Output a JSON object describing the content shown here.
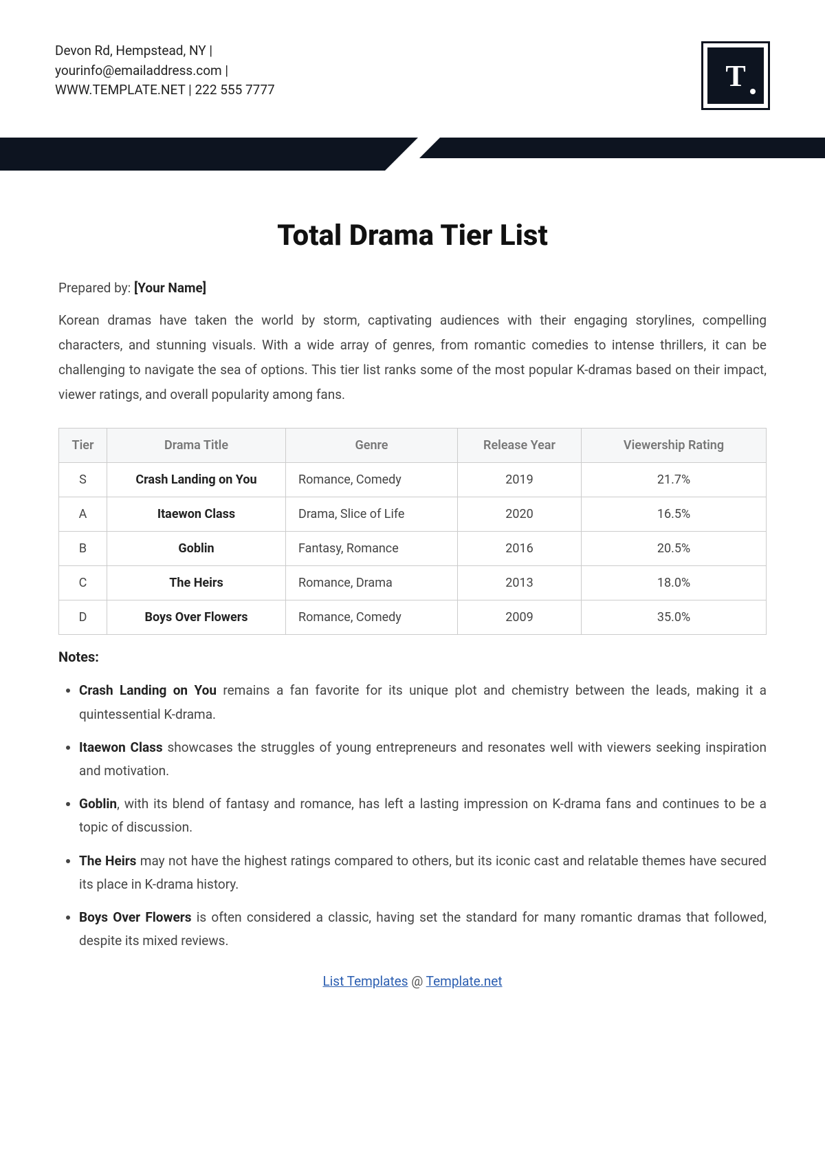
{
  "header": {
    "contact_line1": "Devon Rd, Hempstead, NY |",
    "contact_line2": "yourinfo@emailaddress.com |",
    "contact_line3": "WWW.TEMPLATE.NET | 222 555 7777",
    "logo_text": "T"
  },
  "colors": {
    "primary": "#0d1420",
    "text": "#333333",
    "muted": "#777777",
    "link": "#2a5db0",
    "border": "#cccccc",
    "th_bg": "#f6f7f8"
  },
  "title": "Total Drama Tier List",
  "prepared_label": "Prepared by: ",
  "prepared_value": "[Your Name]",
  "intro": "Korean dramas have taken the world by storm, captivating audiences with their engaging storylines, compelling characters, and stunning visuals. With a wide array of genres, from romantic comedies to intense thrillers, it can be challenging to navigate the sea of options. This tier list ranks some of the most popular K-dramas based on their impact, viewer ratings, and overall popularity among fans.",
  "table": {
    "columns": [
      "Tier",
      "Drama Title",
      "Genre",
      "Release Year",
      "Viewership Rating"
    ],
    "rows": [
      {
        "tier": "S",
        "title": "Crash Landing on You",
        "genre": "Romance, Comedy",
        "year": "2019",
        "rating": "21.7%"
      },
      {
        "tier": "A",
        "title": "Itaewon Class",
        "genre": "Drama, Slice of Life",
        "year": "2020",
        "rating": "16.5%"
      },
      {
        "tier": "B",
        "title": "Goblin",
        "genre": "Fantasy, Romance",
        "year": "2016",
        "rating": "20.5%"
      },
      {
        "tier": "C",
        "title": "The Heirs",
        "genre": "Romance, Drama",
        "year": "2013",
        "rating": "18.0%"
      },
      {
        "tier": "D",
        "title": "Boys Over Flowers",
        "genre": "Romance, Comedy",
        "year": "2009",
        "rating": "35.0%"
      }
    ]
  },
  "notes_heading": "Notes:",
  "notes": [
    {
      "bold": "Crash Landing on You",
      "rest": " remains a fan favorite for its unique plot and chemistry between the leads, making it a quintessential K-drama."
    },
    {
      "bold": "Itaewon Class",
      "rest": " showcases the struggles of young entrepreneurs and resonates well with viewers seeking inspiration and motivation."
    },
    {
      "bold": "Goblin",
      "rest": ", with its blend of fantasy and romance, has left a lasting impression on K-drama fans and continues to be a topic of discussion."
    },
    {
      "bold": "The Heirs",
      "rest": " may not have the highest ratings compared to others, but its iconic cast and relatable themes have secured its place in K-drama history."
    },
    {
      "bold": "Boys Over Flowers",
      "rest": " is often considered a classic, having set the standard for many romantic dramas that followed, despite its mixed reviews."
    }
  ],
  "footer": {
    "link1_text": "List Templates",
    "at": " @ ",
    "link2_text": "Template.net"
  }
}
